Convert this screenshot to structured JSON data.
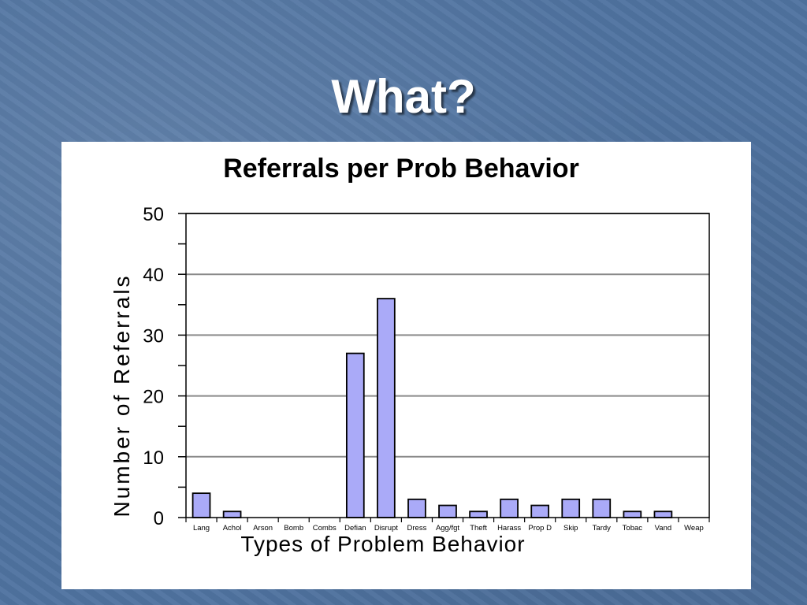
{
  "slide": {
    "title": "What?"
  },
  "chart_data": {
    "type": "bar",
    "title": "Referrals per Prob Behavior",
    "xlabel": "Types of Problem Behavior",
    "ylabel": "Number of Referrals",
    "categories": [
      "Lang",
      "Achol",
      "Arson",
      "Bomb",
      "Combs",
      "Defian",
      "Disrupt",
      "Dress",
      "Agg/fgt",
      "Theft",
      "Harass",
      "Prop D",
      "Skip",
      "Tardy",
      "Tobac",
      "Vand",
      "Weap"
    ],
    "values": [
      4,
      1,
      0,
      0,
      0,
      27,
      36,
      3,
      2,
      1,
      3,
      2,
      3,
      3,
      1,
      1,
      0
    ],
    "ylim": [
      0,
      50
    ],
    "yticks": [
      0,
      10,
      20,
      30,
      40,
      50
    ],
    "grid": true,
    "bar_color": "#aaaaf8"
  }
}
